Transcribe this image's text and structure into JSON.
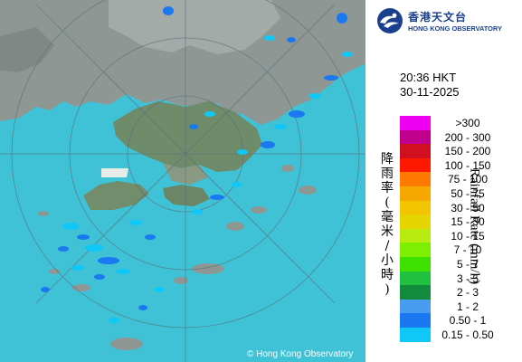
{
  "title": {
    "org_name_zh": "香港天文台",
    "org_name_en": "HONG KONG OBSERVATORY"
  },
  "icons": {
    "logo": "hko-logo-icon"
  },
  "timestamp": {
    "time": "20:36 HKT",
    "date": "30-11-2025"
  },
  "legend": {
    "label_zh": "降雨率(毫米/小時)",
    "label_en": "Rainfall Rate (mm/h)",
    "items": [
      {
        "label": ">300",
        "color": "#f000f0"
      },
      {
        "label": "200 - 300",
        "color": "#c0008c"
      },
      {
        "label": "150 - 200",
        "color": "#d01020"
      },
      {
        "label": "100 - 150",
        "color": "#ff1800"
      },
      {
        "label": "75 - 100",
        "color": "#ff7a00"
      },
      {
        "label": "50 - 75",
        "color": "#f7a800"
      },
      {
        "label": "30 - 50",
        "color": "#f3c400"
      },
      {
        "label": "15 - 30",
        "color": "#e6d400"
      },
      {
        "label": "10 - 15",
        "color": "#b8ec10"
      },
      {
        "label": "7 - 10",
        "color": "#7cf000"
      },
      {
        "label": "5 - 7",
        "color": "#3ee000"
      },
      {
        "label": "3 - 5",
        "color": "#20c040"
      },
      {
        "label": "2 - 3",
        "color": "#128c3c"
      },
      {
        "label": "1 - 2",
        "color": "#4a9cf0"
      },
      {
        "label": "0.50 - 1",
        "color": "#1a78f0"
      },
      {
        "label": "0.15 - 0.50",
        "color": "#10c8f8"
      }
    ]
  },
  "map": {
    "sea_color": "#3fc2d6",
    "copyright": "© Hong Kong Observatory"
  }
}
